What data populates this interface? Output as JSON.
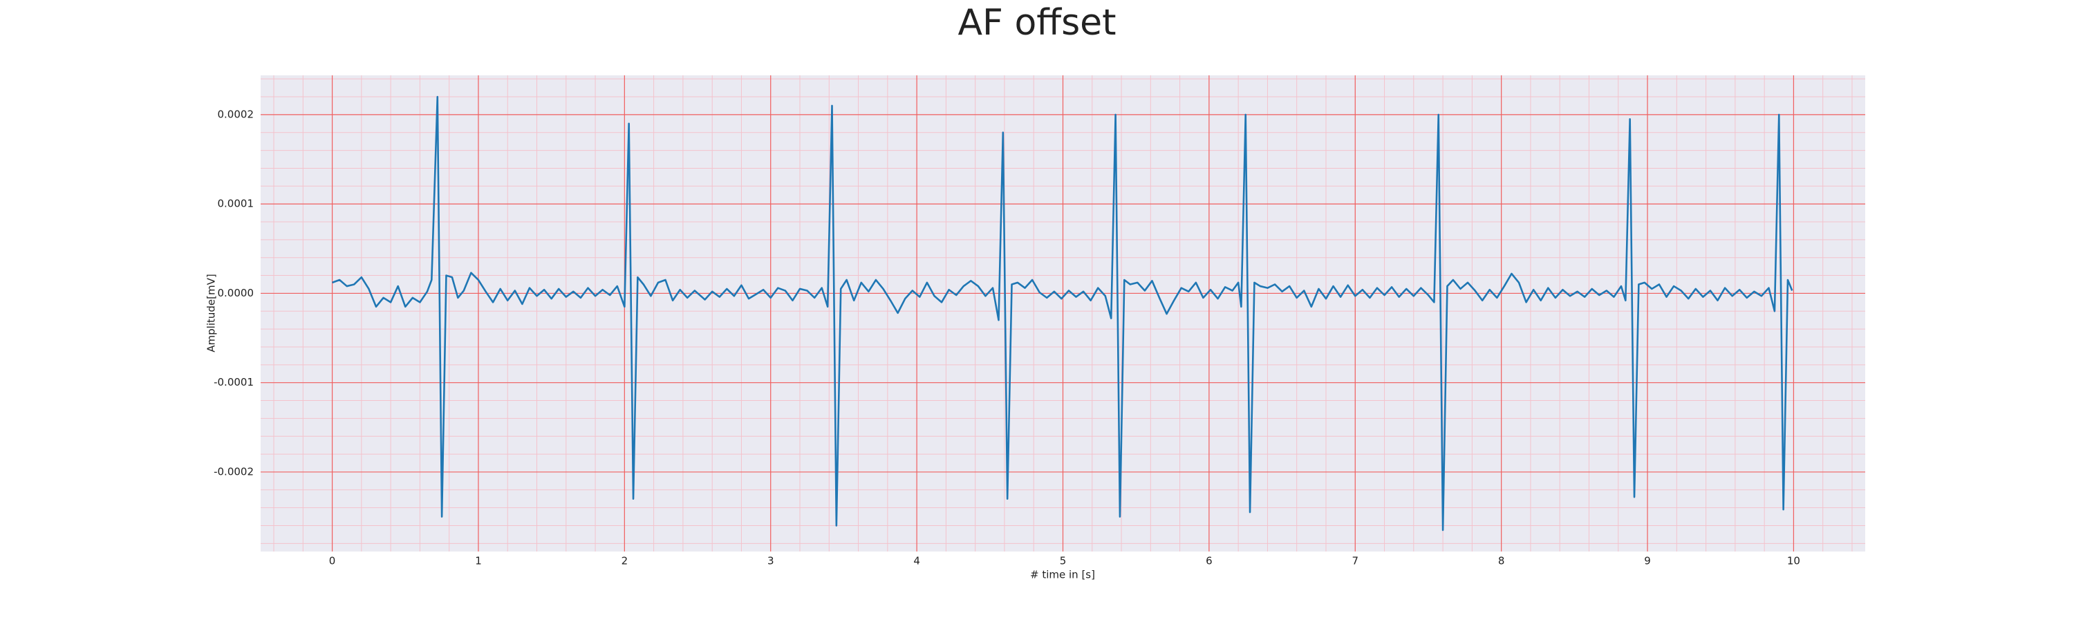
{
  "chart_data": {
    "type": "line",
    "title": "AF offset",
    "xlabel": "# time in [s]",
    "ylabel": "Amplitude[mV]",
    "color": "#1f77b4",
    "grid": true,
    "minor_grid": true,
    "xlim": [
      -0.49,
      10.49
    ],
    "ylim": [
      -0.000289,
      0.000244
    ],
    "xticks": [
      0,
      1,
      2,
      3,
      4,
      5,
      6,
      7,
      8,
      9,
      10
    ],
    "yticks": [
      -0.0002,
      -0.0001,
      {
        "value": 0,
        "label": "0.0000"
      },
      0.0001,
      0.0002
    ],
    "x": [
      0,
      0.05,
      0.1,
      0.15,
      0.2,
      0.25,
      0.3,
      0.35,
      0.4,
      0.45,
      0.5,
      0.55,
      0.6,
      0.65,
      0.68,
      0.72,
      0.75,
      0.78,
      0.82,
      0.86,
      0.9,
      0.95,
      1.0,
      1.05,
      1.1,
      1.15,
      1.2,
      1.25,
      1.3,
      1.35,
      1.4,
      1.45,
      1.5,
      1.55,
      1.6,
      1.65,
      1.7,
      1.75,
      1.8,
      1.85,
      1.9,
      1.95,
      2.0,
      2.03,
      2.06,
      2.09,
      2.13,
      2.18,
      2.23,
      2.28,
      2.33,
      2.38,
      2.43,
      2.48,
      2.55,
      2.6,
      2.65,
      2.7,
      2.75,
      2.8,
      2.85,
      2.9,
      2.95,
      3.0,
      3.05,
      3.1,
      3.15,
      3.2,
      3.25,
      3.3,
      3.35,
      3.39,
      3.42,
      3.45,
      3.48,
      3.52,
      3.57,
      3.62,
      3.67,
      3.72,
      3.77,
      3.82,
      3.87,
      3.92,
      3.97,
      4.02,
      4.07,
      4.12,
      4.17,
      4.22,
      4.27,
      4.32,
      4.37,
      4.42,
      4.47,
      4.52,
      4.56,
      4.59,
      4.62,
      4.65,
      4.69,
      4.74,
      4.79,
      4.84,
      4.89,
      4.94,
      4.99,
      5.04,
      5.09,
      5.14,
      5.19,
      5.24,
      5.29,
      5.33,
      5.36,
      5.39,
      5.42,
      5.46,
      5.51,
      5.56,
      5.61,
      5.66,
      5.71,
      5.76,
      5.81,
      5.86,
      5.91,
      5.96,
      6.01,
      6.06,
      6.11,
      6.16,
      6.2,
      6.22,
      6.25,
      6.28,
      6.31,
      6.35,
      6.4,
      6.45,
      6.5,
      6.55,
      6.6,
      6.65,
      6.7,
      6.75,
      6.8,
      6.85,
      6.9,
      6.95,
      7.0,
      7.05,
      7.1,
      7.15,
      7.2,
      7.25,
      7.3,
      7.35,
      7.4,
      7.45,
      7.5,
      7.54,
      7.57,
      7.6,
      7.63,
      7.67,
      7.72,
      7.77,
      7.82,
      7.87,
      7.92,
      7.97,
      8.02,
      8.07,
      8.12,
      8.17,
      8.22,
      8.27,
      8.32,
      8.37,
      8.42,
      8.47,
      8.52,
      8.57,
      8.62,
      8.67,
      8.72,
      8.77,
      8.82,
      8.85,
      8.88,
      8.91,
      8.94,
      8.98,
      9.03,
      9.08,
      9.13,
      9.18,
      9.23,
      9.28,
      9.33,
      9.38,
      9.43,
      9.48,
      9.53,
      9.58,
      9.63,
      9.68,
      9.73,
      9.78,
      9.83,
      9.87,
      9.9,
      9.93,
      9.96,
      9.99
    ],
    "values": [
      1.2e-05,
      1.5e-05,
      8e-06,
      1e-05,
      1.8e-05,
      5e-06,
      -1.5e-05,
      -5e-06,
      -1e-05,
      8e-06,
      -1.5e-05,
      -5e-06,
      -1e-05,
      2e-06,
      1.5e-05,
      0.00022,
      -0.00025,
      2e-05,
      1.8e-05,
      -5e-06,
      3e-06,
      2.3e-05,
      1.5e-05,
      2e-06,
      -1e-05,
      5e-06,
      -8e-06,
      3e-06,
      -1.2e-05,
      6e-06,
      -3e-06,
      4e-06,
      -6e-06,
      5e-06,
      -4e-06,
      2e-06,
      -5e-06,
      6e-06,
      -3e-06,
      4e-06,
      -2e-06,
      8e-06,
      -1.5e-05,
      0.00019,
      -0.00023,
      1.8e-05,
      1e-05,
      -3e-06,
      1.2e-05,
      1.5e-05,
      -8e-06,
      4e-06,
      -5e-06,
      3e-06,
      -7e-06,
      2e-06,
      -4e-06,
      5e-06,
      -3e-06,
      9e-06,
      -6e-06,
      -1e-06,
      4e-06,
      -5e-06,
      6e-06,
      3e-06,
      -8e-06,
      5e-06,
      3e-06,
      -5e-06,
      6e-06,
      -1.5e-05,
      0.00021,
      -0.00026,
      5e-06,
      1.5e-05,
      -8e-06,
      1.2e-05,
      2e-06,
      1.5e-05,
      5e-06,
      -8e-06,
      -2.2e-05,
      -6e-06,
      3e-06,
      -4e-06,
      1.2e-05,
      -3e-06,
      -1e-05,
      4e-06,
      -2e-06,
      8e-06,
      1.4e-05,
      8e-06,
      -3e-06,
      6e-06,
      -3e-05,
      0.00018,
      -0.00023,
      1e-05,
      1.2e-05,
      6e-06,
      1.5e-05,
      1e-06,
      -5e-06,
      2e-06,
      -6e-06,
      3e-06,
      -4e-06,
      2e-06,
      -8e-06,
      6e-06,
      -3e-06,
      -2.8e-05,
      0.0002,
      -0.00025,
      1.5e-05,
      1e-05,
      1.2e-05,
      3e-06,
      1.4e-05,
      -5e-06,
      -2.3e-05,
      -8e-06,
      6e-06,
      2e-06,
      1.2e-05,
      -5e-06,
      4e-06,
      -6e-06,
      7e-06,
      3e-06,
      1.2e-05,
      -1.5e-05,
      0.0002,
      -0.000245,
      1.2e-05,
      8e-06,
      6e-06,
      1e-05,
      2e-06,
      8e-06,
      -5e-06,
      3e-06,
      -1.5e-05,
      5e-06,
      -6e-06,
      8e-06,
      -4e-06,
      9e-06,
      -3e-06,
      4e-06,
      -5e-06,
      6e-06,
      -2e-06,
      7e-06,
      -4e-06,
      5e-06,
      -3e-06,
      6e-06,
      -2e-06,
      -1e-05,
      0.0002,
      -0.000265,
      8e-06,
      1.5e-05,
      5e-06,
      1.2e-05,
      3e-06,
      -8e-06,
      4e-06,
      -5e-06,
      8e-06,
      2.2e-05,
      1.2e-05,
      -1e-05,
      4e-06,
      -8e-06,
      6e-06,
      -5e-06,
      4e-06,
      -3e-06,
      2e-06,
      -4e-06,
      5e-06,
      -2e-06,
      3e-06,
      -4e-06,
      8e-06,
      -8e-06,
      0.000195,
      -0.000228,
      1e-05,
      1.2e-05,
      5e-06,
      1e-05,
      -4e-06,
      8e-06,
      3e-06,
      -6e-06,
      5e-06,
      -4e-06,
      3e-06,
      -8e-06,
      6e-06,
      -3e-06,
      4e-06,
      -5e-06,
      2e-06,
      -3e-06,
      6e-06,
      -2e-05,
      0.0002,
      -0.000242,
      1.5e-05,
      3e-06
    ]
  }
}
